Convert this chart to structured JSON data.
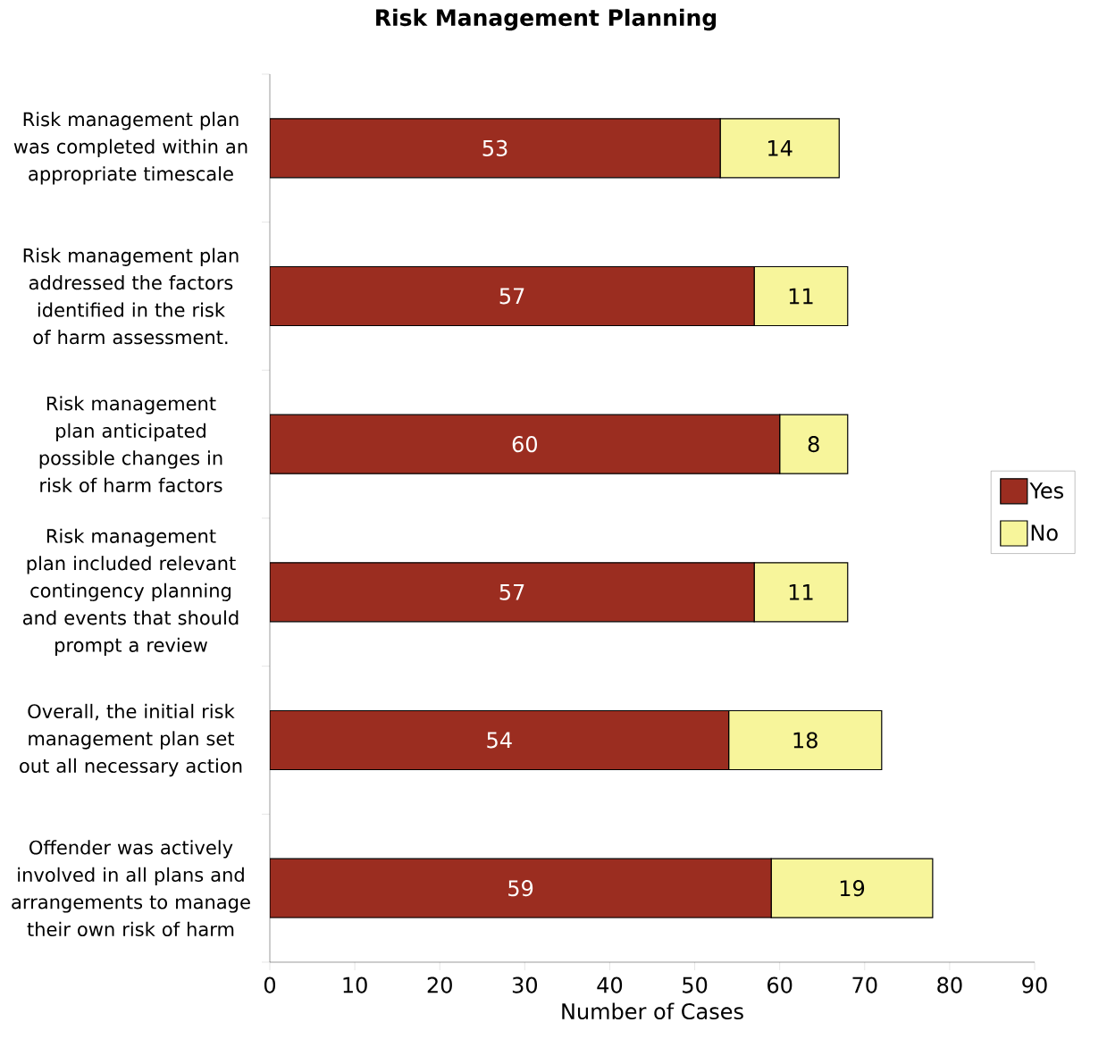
{
  "chart_data": {
    "type": "bar",
    "orientation": "horizontal",
    "stacked": true,
    "title": "Risk Management Planning",
    "xlabel": "Number of Cases",
    "categories": [
      "Risk management plan was completed within an appropriate timescale",
      "Risk management plan addressed the factors identified in the risk of harm assessment.",
      "Risk management plan anticipated possible changes in risk of harm factors",
      "Risk management plan included relevant contingency planning and events that should prompt a review",
      "Overall, the initial risk management plan set out all necessary action",
      "Offender was actively involved in all plans and arrangements to manage their own risk of harm"
    ],
    "series": [
      {
        "name": "Yes",
        "color": "#9b2d20",
        "values": [
          53,
          57,
          60,
          57,
          54,
          59
        ],
        "value_labels": [
          "53",
          "57",
          "60",
          "57",
          "54",
          "59"
        ]
      },
      {
        "name": "No",
        "color": "#f7f59b",
        "values": [
          14,
          11,
          8,
          11,
          18,
          19
        ],
        "value_labels": [
          "14",
          "11",
          "8",
          "11",
          "18",
          "19"
        ]
      }
    ],
    "xlim": [
      0,
      90
    ],
    "xticks": [
      0,
      10,
      20,
      30,
      40,
      50,
      60,
      70,
      80,
      90
    ],
    "legend": "right"
  }
}
